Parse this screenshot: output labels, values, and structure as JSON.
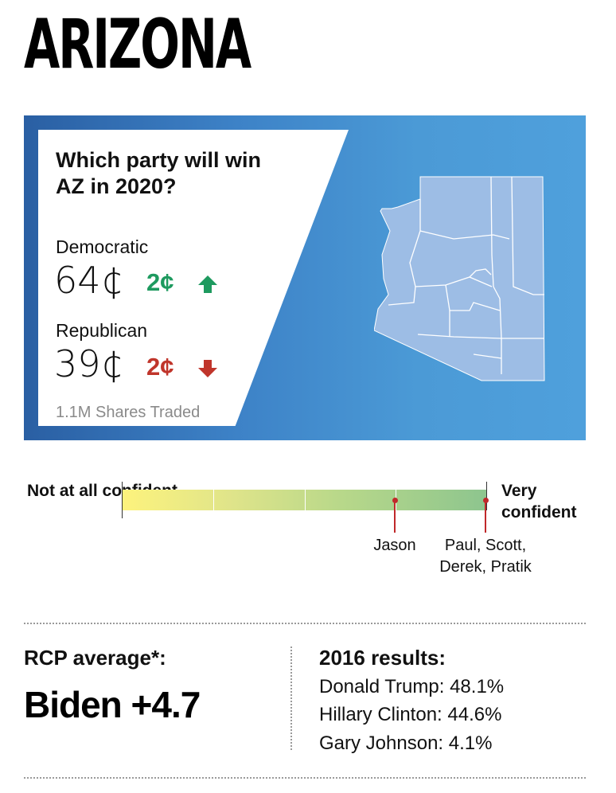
{
  "title": "ARIZONA",
  "market": {
    "question": "Which party will win AZ in 2020?",
    "parties": [
      {
        "name": "Democratic",
        "price": "64¢",
        "change": "2¢",
        "direction": "up",
        "color": "#1e9a5f"
      },
      {
        "name": "Republican",
        "price": "39¢",
        "change": "2¢",
        "direction": "down",
        "color": "#c0352b"
      }
    ],
    "shares_traded": "1.1M Shares Traded",
    "map_icon": "arizona-county-map-icon"
  },
  "confidence": {
    "low_label": "Not at all confident",
    "high_label": "Very confident",
    "markers": [
      {
        "name": "Jason",
        "level": 0.75
      },
      {
        "name": "Paul, Scott, Derek, Pratik",
        "level": 1.0
      }
    ],
    "marker_color": "#c0282a"
  },
  "rcp": {
    "label": "RCP average*:",
    "value": "Biden +4.7"
  },
  "results_2016": {
    "title": "2016 results:",
    "items": [
      "Donald Trump: 48.1%",
      "Hillary Clinton: 44.6%",
      "Gary Johnson: 4.1%"
    ]
  },
  "colors": {
    "banner_blue": "#3d82c7",
    "map_fill": "#9dbde5",
    "up_green": "#1e9a5f",
    "down_red": "#c0352b"
  }
}
